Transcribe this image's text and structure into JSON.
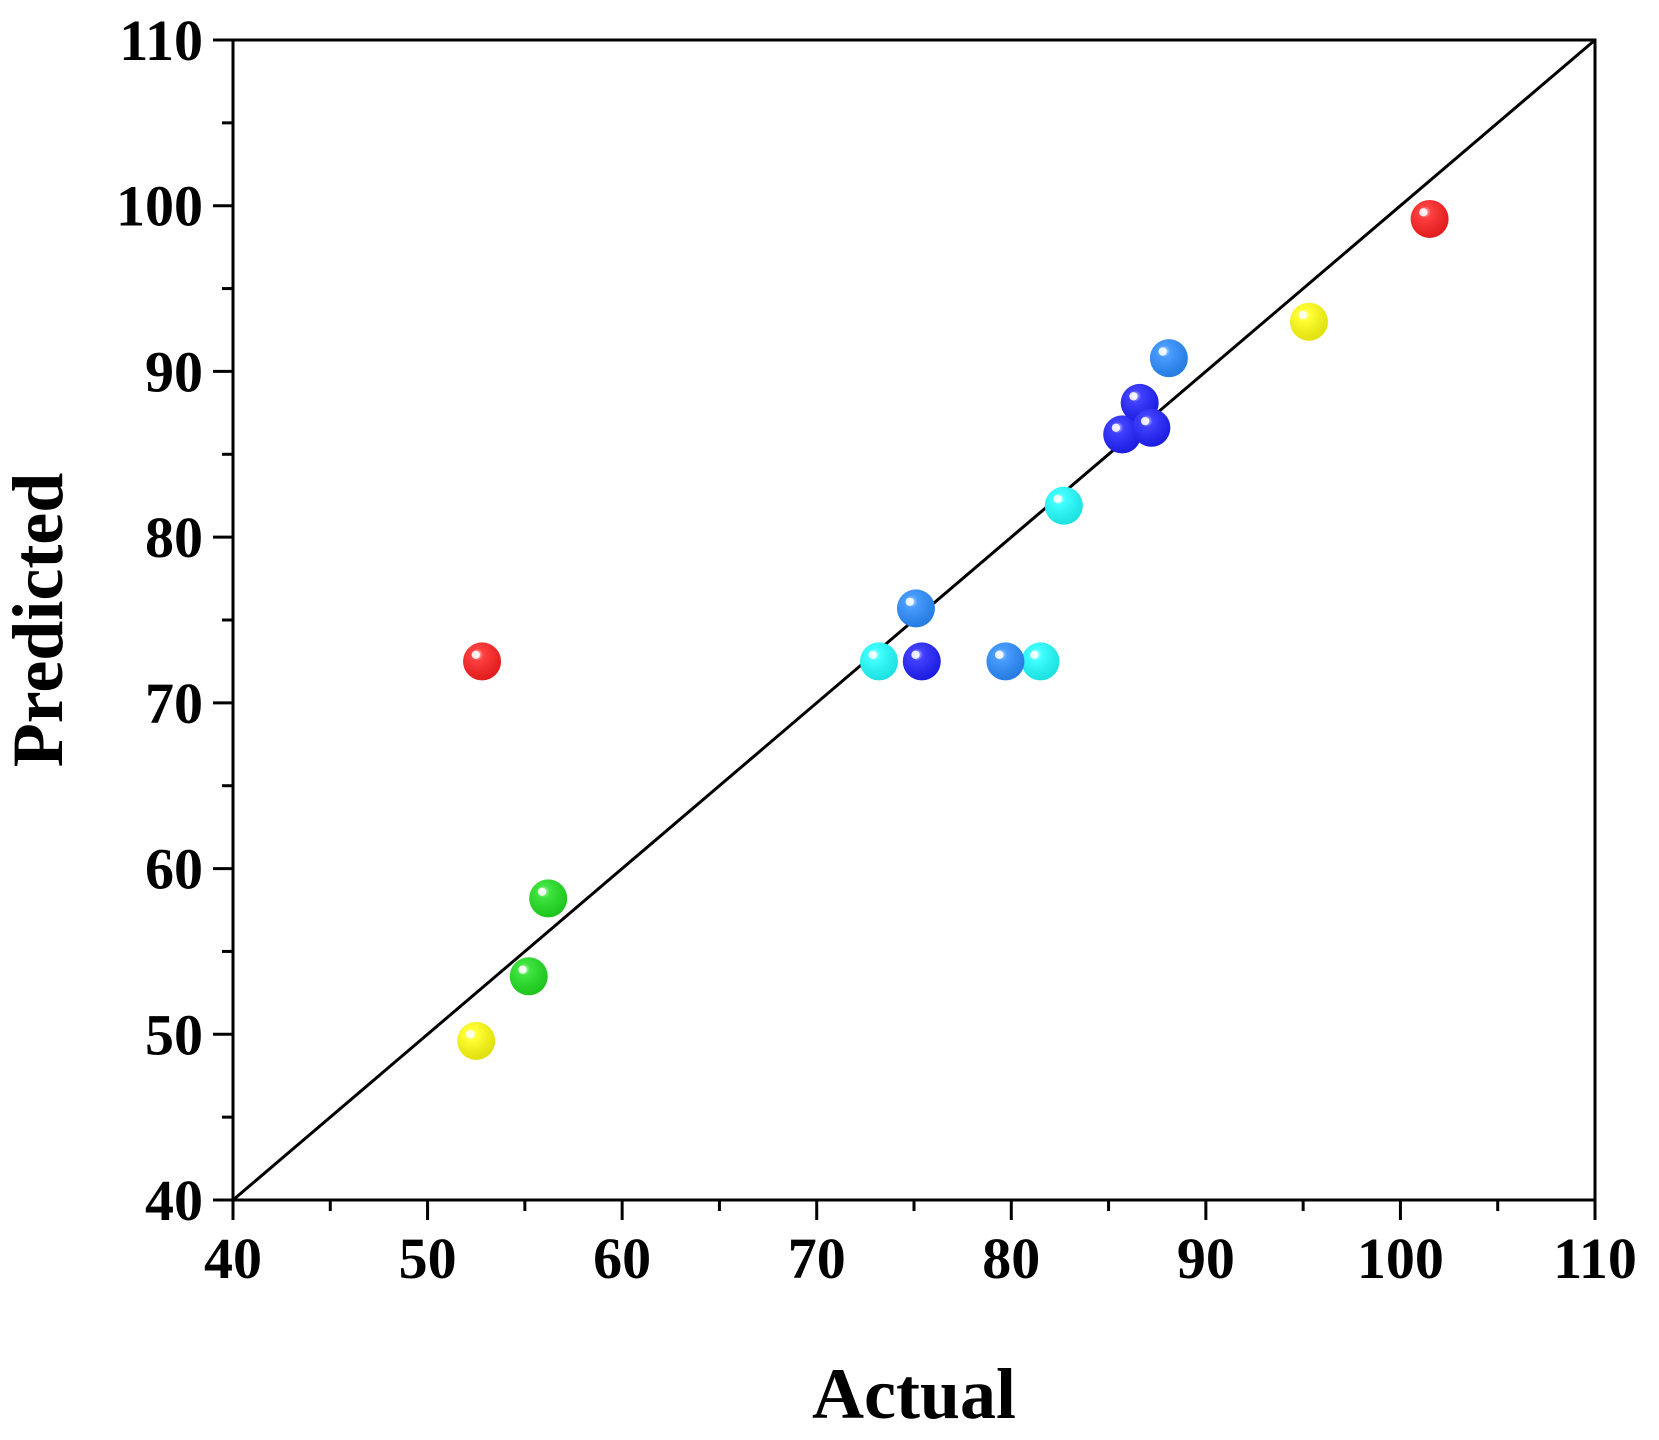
{
  "chart_data": {
    "type": "scatter",
    "title": "",
    "xlabel": "Actual",
    "ylabel": "Predicted",
    "xlim": [
      40,
      110
    ],
    "ylim": [
      40,
      110
    ],
    "x_ticks": [
      40,
      50,
      60,
      70,
      80,
      90,
      100,
      110
    ],
    "y_ticks": [
      40,
      50,
      60,
      70,
      80,
      90,
      100,
      110
    ],
    "x_tick_labels": [
      "40",
      "50",
      "60",
      "70",
      "80",
      "90",
      "100",
      "110"
    ],
    "y_tick_labels": [
      "40",
      "50",
      "60",
      "70",
      "80",
      "90",
      "100",
      "110"
    ],
    "grid": false,
    "reference_line": {
      "from": [
        40,
        40
      ],
      "to": [
        110,
        110
      ],
      "color": "#000000"
    },
    "series": [
      {
        "color": "#ff2020",
        "points": [
          [
            52.8,
            72.5
          ],
          [
            101.5,
            99.2
          ]
        ]
      },
      {
        "color": "#ffff10",
        "points": [
          [
            52.5,
            49.6
          ],
          [
            95.3,
            93.0
          ]
        ]
      },
      {
        "color": "#20e020",
        "points": [
          [
            55.2,
            53.5
          ],
          [
            56.2,
            58.2
          ]
        ]
      },
      {
        "color": "#20ffff",
        "points": [
          [
            73.2,
            72.5
          ],
          [
            81.5,
            72.5
          ],
          [
            82.7,
            81.9
          ]
        ]
      },
      {
        "color": "#2a8cff",
        "points": [
          [
            75.1,
            75.7
          ],
          [
            79.7,
            72.5
          ],
          [
            88.1,
            90.8
          ]
        ]
      },
      {
        "color": "#2020ff",
        "points": [
          [
            75.4,
            72.5
          ],
          [
            85.7,
            86.2
          ],
          [
            86.6,
            88.1
          ],
          [
            87.2,
            86.6
          ]
        ]
      }
    ]
  }
}
